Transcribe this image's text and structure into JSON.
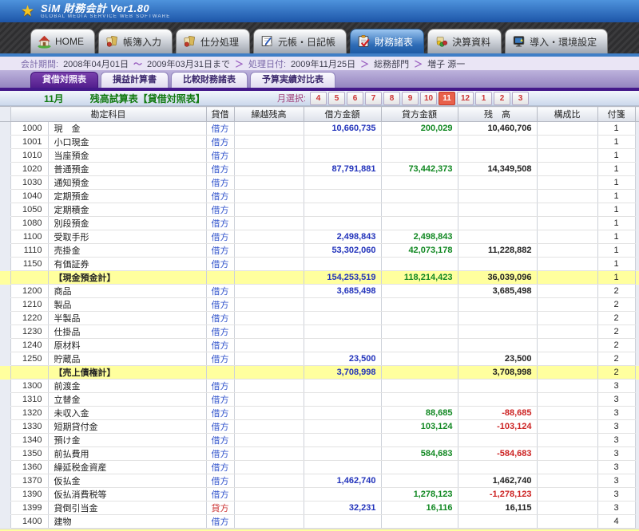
{
  "app": {
    "title": "SiM 財務会計 Ver1.80",
    "subtitle": "GLOBAL MEDIA SERVICE  WEB SOFTWARE"
  },
  "nav": {
    "tabs": [
      {
        "label": "HOME",
        "icon": "home-icon",
        "selected": false
      },
      {
        "label": "帳簿入力",
        "icon": "book-entry-icon",
        "selected": false
      },
      {
        "label": "仕分処理",
        "icon": "journal-process-icon",
        "selected": false
      },
      {
        "label": "元帳・日記帳",
        "icon": "ledger-diary-icon",
        "selected": false
      },
      {
        "label": "財務諸表",
        "icon": "financial-statements-icon",
        "selected": true
      },
      {
        "label": "決算資料",
        "icon": "settlement-docs-icon",
        "selected": false
      },
      {
        "label": "導入・環境設定",
        "icon": "environment-settings-icon",
        "selected": false
      }
    ]
  },
  "info": {
    "segments": [
      {
        "kind": "label",
        "text": "会計期間:"
      },
      {
        "kind": "value",
        "text": "2008年04月01日"
      },
      {
        "kind": "sep",
        "text": "～"
      },
      {
        "kind": "value",
        "text": "2009年03月31日まで"
      },
      {
        "kind": "sep",
        "text": "＞"
      },
      {
        "kind": "label",
        "text": "処理日付:"
      },
      {
        "kind": "value",
        "text": "2009年11月25日"
      },
      {
        "kind": "sep",
        "text": "＞"
      },
      {
        "kind": "value",
        "text": "総務部門"
      },
      {
        "kind": "sep",
        "text": "＞"
      },
      {
        "kind": "value",
        "text": "増子 源一"
      }
    ]
  },
  "subtabs": [
    {
      "label": "貸借対照表",
      "selected": true
    },
    {
      "label": "損益計算書",
      "selected": false
    },
    {
      "label": "比較財務諸表",
      "selected": false
    },
    {
      "label": "予算実績対比表",
      "selected": false
    }
  ],
  "titlebar": {
    "month": "11月",
    "title": "残高試算表【貸借対照表】",
    "month_select_label": "月選択:",
    "months": [
      "4",
      "5",
      "6",
      "7",
      "8",
      "9",
      "10",
      "11",
      "12",
      "1",
      "2",
      "3"
    ],
    "selected_month": "11"
  },
  "table": {
    "columns": {
      "account": "勘定科目",
      "dc": "貸借",
      "carryover": "繰越残高",
      "debit": "借方金額",
      "credit": "貸方金額",
      "balance": "残　高",
      "ratio": "構成比",
      "tag": "付箋"
    },
    "rows": [
      {
        "code": "1000",
        "name": "現　金",
        "dc": "借方",
        "carryover": "",
        "debit": "10,660,735",
        "credit": "200,029",
        "balance": "10,460,706",
        "ratio": "",
        "tag": "1",
        "total": false
      },
      {
        "code": "1001",
        "name": "小口現金",
        "dc": "借方",
        "carryover": "",
        "debit": "",
        "credit": "",
        "balance": "",
        "ratio": "",
        "tag": "1",
        "total": false
      },
      {
        "code": "1010",
        "name": "当座預金",
        "dc": "借方",
        "carryover": "",
        "debit": "",
        "credit": "",
        "balance": "",
        "ratio": "",
        "tag": "1",
        "total": false
      },
      {
        "code": "1020",
        "name": "普通預金",
        "dc": "借方",
        "carryover": "",
        "debit": "87,791,881",
        "credit": "73,442,373",
        "balance": "14,349,508",
        "ratio": "",
        "tag": "1",
        "total": false
      },
      {
        "code": "1030",
        "name": "通知預金",
        "dc": "借方",
        "carryover": "",
        "debit": "",
        "credit": "",
        "balance": "",
        "ratio": "",
        "tag": "1",
        "total": false
      },
      {
        "code": "1040",
        "name": "定期預金",
        "dc": "借方",
        "carryover": "",
        "debit": "",
        "credit": "",
        "balance": "",
        "ratio": "",
        "tag": "1",
        "total": false
      },
      {
        "code": "1050",
        "name": "定期積金",
        "dc": "借方",
        "carryover": "",
        "debit": "",
        "credit": "",
        "balance": "",
        "ratio": "",
        "tag": "1",
        "total": false
      },
      {
        "code": "1080",
        "name": "別段預金",
        "dc": "借方",
        "carryover": "",
        "debit": "",
        "credit": "",
        "balance": "",
        "ratio": "",
        "tag": "1",
        "total": false
      },
      {
        "code": "1100",
        "name": "受取手形",
        "dc": "借方",
        "carryover": "",
        "debit": "2,498,843",
        "credit": "2,498,843",
        "balance": "",
        "ratio": "",
        "tag": "1",
        "total": false
      },
      {
        "code": "1110",
        "name": "売掛金",
        "dc": "借方",
        "carryover": "",
        "debit": "53,302,060",
        "credit": "42,073,178",
        "balance": "11,228,882",
        "ratio": "",
        "tag": "1",
        "total": false
      },
      {
        "code": "1150",
        "name": "有価証券",
        "dc": "借方",
        "carryover": "",
        "debit": "",
        "credit": "",
        "balance": "",
        "ratio": "",
        "tag": "1",
        "total": false
      },
      {
        "code": "",
        "name": "【現金預金計】",
        "dc": "",
        "carryover": "",
        "debit": "154,253,519",
        "credit": "118,214,423",
        "balance": "36,039,096",
        "ratio": "",
        "tag": "1",
        "total": true
      },
      {
        "code": "1200",
        "name": "商品",
        "dc": "借方",
        "carryover": "",
        "debit": "3,685,498",
        "credit": "",
        "balance": "3,685,498",
        "ratio": "",
        "tag": "2",
        "total": false
      },
      {
        "code": "1210",
        "name": "製品",
        "dc": "借方",
        "carryover": "",
        "debit": "",
        "credit": "",
        "balance": "",
        "ratio": "",
        "tag": "2",
        "total": false
      },
      {
        "code": "1220",
        "name": "半製品",
        "dc": "借方",
        "carryover": "",
        "debit": "",
        "credit": "",
        "balance": "",
        "ratio": "",
        "tag": "2",
        "total": false
      },
      {
        "code": "1230",
        "name": "仕掛品",
        "dc": "借方",
        "carryover": "",
        "debit": "",
        "credit": "",
        "balance": "",
        "ratio": "",
        "tag": "2",
        "total": false
      },
      {
        "code": "1240",
        "name": "原材料",
        "dc": "借方",
        "carryover": "",
        "debit": "",
        "credit": "",
        "balance": "",
        "ratio": "",
        "tag": "2",
        "total": false
      },
      {
        "code": "1250",
        "name": "貯蔵品",
        "dc": "借方",
        "carryover": "",
        "debit": "23,500",
        "credit": "",
        "balance": "23,500",
        "ratio": "",
        "tag": "2",
        "total": false
      },
      {
        "code": "",
        "name": "【売上債権計】",
        "dc": "",
        "carryover": "",
        "debit": "3,708,998",
        "credit": "",
        "balance": "3,708,998",
        "ratio": "",
        "tag": "2",
        "total": true
      },
      {
        "code": "1300",
        "name": "前渡金",
        "dc": "借方",
        "carryover": "",
        "debit": "",
        "credit": "",
        "balance": "",
        "ratio": "",
        "tag": "3",
        "total": false
      },
      {
        "code": "1310",
        "name": "立替金",
        "dc": "借方",
        "carryover": "",
        "debit": "",
        "credit": "",
        "balance": "",
        "ratio": "",
        "tag": "3",
        "total": false
      },
      {
        "code": "1320",
        "name": "未収入金",
        "dc": "借方",
        "carryover": "",
        "debit": "",
        "credit": "88,685",
        "balance": "-88,685",
        "ratio": "",
        "tag": "3",
        "total": false
      },
      {
        "code": "1330",
        "name": "短期貸付金",
        "dc": "借方",
        "carryover": "",
        "debit": "",
        "credit": "103,124",
        "balance": "-103,124",
        "ratio": "",
        "tag": "3",
        "total": false
      },
      {
        "code": "1340",
        "name": "預け金",
        "dc": "借方",
        "carryover": "",
        "debit": "",
        "credit": "",
        "balance": "",
        "ratio": "",
        "tag": "3",
        "total": false
      },
      {
        "code": "1350",
        "name": "前払費用",
        "dc": "借方",
        "carryover": "",
        "debit": "",
        "credit": "584,683",
        "balance": "-584,683",
        "ratio": "",
        "tag": "3",
        "total": false
      },
      {
        "code": "1360",
        "name": "繰延税金資産",
        "dc": "借方",
        "carryover": "",
        "debit": "",
        "credit": "",
        "balance": "",
        "ratio": "",
        "tag": "3",
        "total": false
      },
      {
        "code": "1370",
        "name": "仮払金",
        "dc": "借方",
        "carryover": "",
        "debit": "1,462,740",
        "credit": "",
        "balance": "1,462,740",
        "ratio": "",
        "tag": "3",
        "total": false
      },
      {
        "code": "1390",
        "name": "仮払消費税等",
        "dc": "借方",
        "carryover": "",
        "debit": "",
        "credit": "1,278,123",
        "balance": "-1,278,123",
        "ratio": "",
        "tag": "3",
        "total": false
      },
      {
        "code": "1399",
        "name": "貸倒引当金",
        "dc": "貸方",
        "carryover": "",
        "debit": "32,231",
        "credit": "16,116",
        "balance": "16,115",
        "ratio": "",
        "tag": "3",
        "total": false
      },
      {
        "code": "1400",
        "name": "建物",
        "dc": "借方",
        "carryover": "",
        "debit": "",
        "credit": "",
        "balance": "",
        "ratio": "",
        "tag": "4",
        "total": false
      }
    ]
  },
  "colors": {
    "debit_text": "#2233bb",
    "credit_text": "#118822",
    "negative_text": "#cc2222",
    "dc_debit_text": "#3355cc",
    "dc_credit_text": "#cc3333",
    "total_row_bg": "#ffff9e",
    "selected_month_bg": "#e8604a",
    "selected_nav_tab": "#2e6cb6",
    "selected_subtab": "#521e8d",
    "title_text_green": "#127a12"
  }
}
